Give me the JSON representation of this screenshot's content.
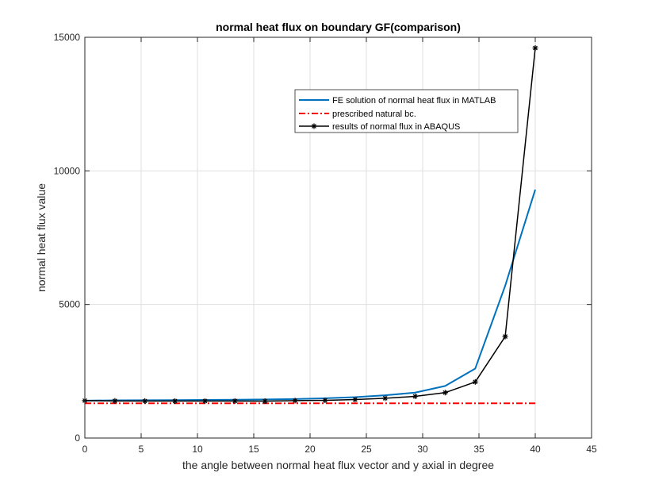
{
  "chart_data": {
    "type": "line",
    "title": "normal heat flux on boundary GF(comparison)",
    "xlabel": "the angle between normal heat flux vector and y axial in degree",
    "ylabel": "normal heat flux value",
    "xlim": [
      0,
      45
    ],
    "ylim": [
      0,
      15000
    ],
    "xticks": [
      0,
      5,
      10,
      15,
      20,
      25,
      30,
      35,
      40,
      45
    ],
    "yticks": [
      0,
      5000,
      10000,
      15000
    ],
    "grid": true,
    "legend_position": "top-right",
    "series": [
      {
        "name": "FE solution of normal heat flux in MATLAB",
        "color": "#0072BD",
        "style": "solid",
        "marker": "none",
        "x": [
          0,
          2.67,
          5.33,
          8,
          10.67,
          13.33,
          16,
          18.67,
          21.33,
          24,
          26.67,
          29.33,
          32,
          34.67,
          37.33,
          40
        ],
        "y": [
          1400,
          1410,
          1415,
          1420,
          1425,
          1435,
          1445,
          1460,
          1490,
          1530,
          1600,
          1700,
          1950,
          2600,
          5700,
          9300
        ]
      },
      {
        "name": "prescribed natural bc.",
        "color": "#FF0000",
        "style": "dashdot",
        "marker": "none",
        "x": [
          0,
          40
        ],
        "y": [
          1300,
          1300
        ]
      },
      {
        "name": "results of normal flux in ABAQUS",
        "color": "#000000",
        "style": "solid",
        "marker": "asterisk",
        "x": [
          0,
          2.67,
          5.33,
          8,
          10.67,
          13.33,
          16,
          18.67,
          21.33,
          24,
          26.67,
          29.33,
          32,
          34.67,
          37.33,
          40
        ],
        "y": [
          1400,
          1390,
          1385,
          1385,
          1385,
          1385,
          1380,
          1400,
          1410,
          1440,
          1490,
          1560,
          1700,
          2100,
          3800,
          14600
        ]
      }
    ]
  }
}
